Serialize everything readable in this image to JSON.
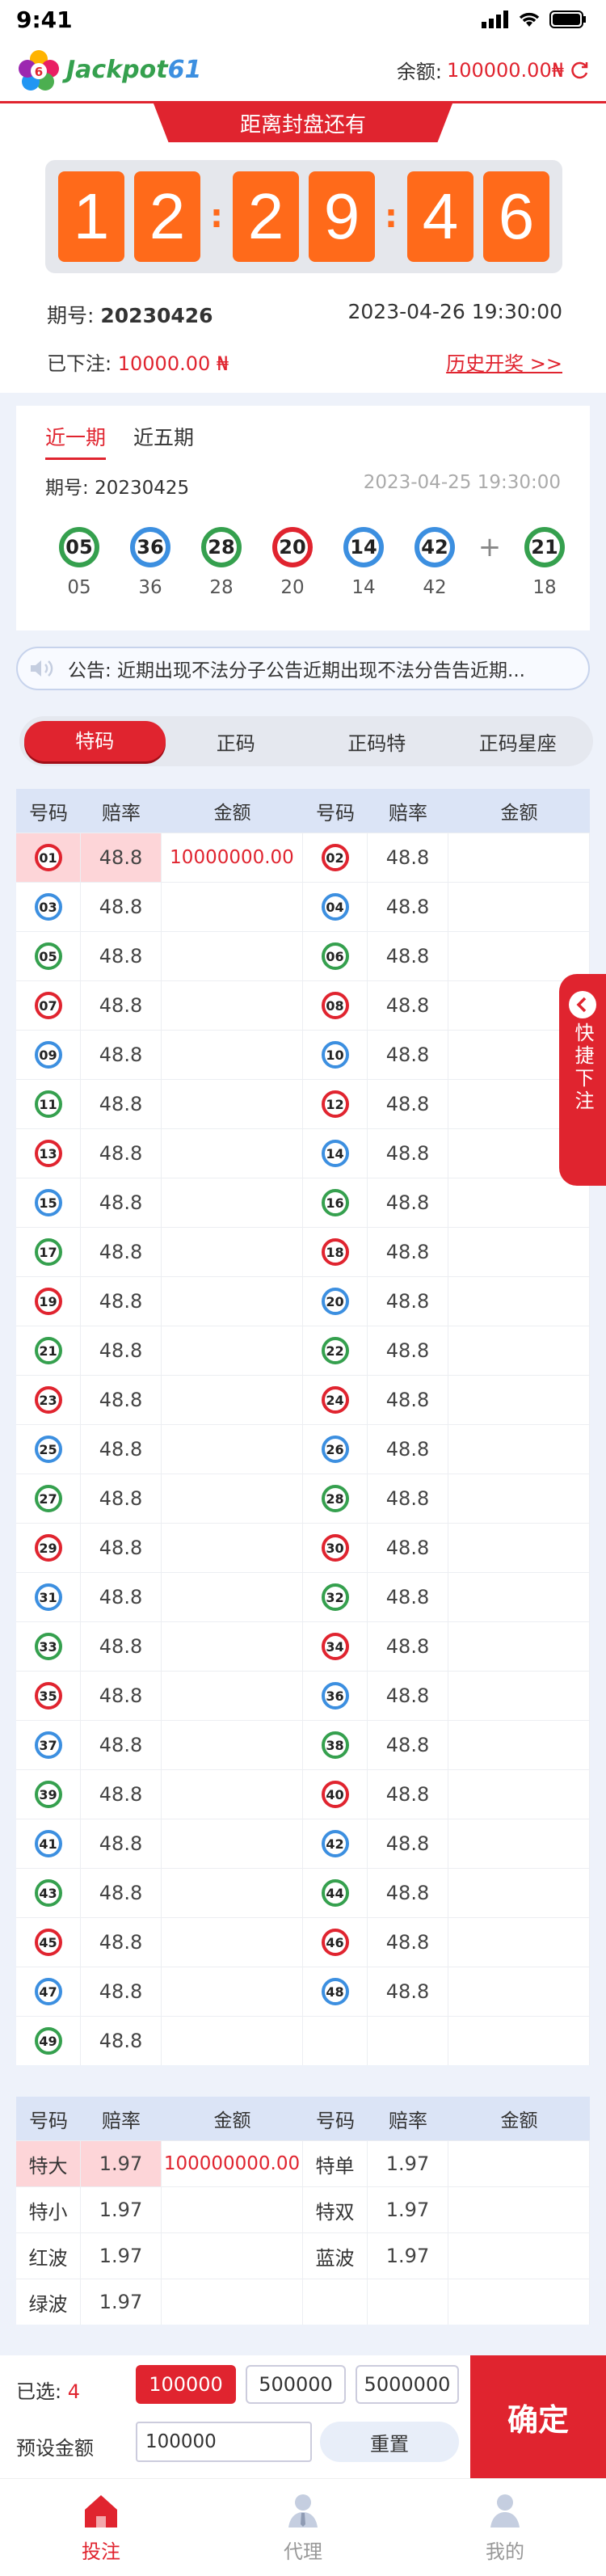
{
  "status_bar": {
    "time": "9:41"
  },
  "header": {
    "logo_text": "Jackpot61",
    "balance_label": "余额:",
    "balance_value": "100000.00₦"
  },
  "countdown": {
    "title": "距离封盘还有",
    "hours": [
      "1",
      "2"
    ],
    "minutes": [
      "2",
      "9"
    ],
    "seconds": [
      "4",
      "6"
    ]
  },
  "current": {
    "period_label": "期号:",
    "period": "20230426",
    "datetime": "2023-04-26 19:30:00",
    "bet_label": "已下注:",
    "bet_amount": "10000.00 ₦",
    "history_link": "历史开奖 >>"
  },
  "history": {
    "tabs": [
      "近一期",
      "近五期"
    ],
    "period_label": "期号:",
    "period": "20230425",
    "datetime": "2023-04-25 19:30:00",
    "balls": [
      {
        "num": "05",
        "color": "#35a04e"
      },
      {
        "num": "36",
        "color": "#3c8fe0"
      },
      {
        "num": "28",
        "color": "#35a04e"
      },
      {
        "num": "20",
        "color": "#e0242f"
      },
      {
        "num": "14",
        "color": "#3c8fe0"
      },
      {
        "num": "42",
        "color": "#3c8fe0"
      }
    ],
    "special": {
      "num": "21",
      "label": "18",
      "color": "#35a04e"
    }
  },
  "notice": {
    "text": "公告: 近期出现不法分子公告近期出现不法分告告近期..."
  },
  "play_tabs": [
    "特码",
    "正码",
    "正码特",
    "正码星座"
  ],
  "grid": {
    "headers": [
      "号码",
      "赔率",
      "金额",
      "号码",
      "赔率",
      "金额"
    ],
    "colors": {
      "red": "#e0242f",
      "blue": "#3c8fe0",
      "green": "#35a04e"
    },
    "numbers": [
      {
        "n": "01",
        "c": "red",
        "o": "48.8",
        "a": "10000000.00",
        "sel": true
      },
      {
        "n": "02",
        "c": "red",
        "o": "48.8",
        "a": ""
      },
      {
        "n": "03",
        "c": "blue",
        "o": "48.8",
        "a": ""
      },
      {
        "n": "04",
        "c": "blue",
        "o": "48.8",
        "a": ""
      },
      {
        "n": "05",
        "c": "green",
        "o": "48.8",
        "a": ""
      },
      {
        "n": "06",
        "c": "green",
        "o": "48.8",
        "a": ""
      },
      {
        "n": "07",
        "c": "red",
        "o": "48.8",
        "a": ""
      },
      {
        "n": "08",
        "c": "red",
        "o": "48.8",
        "a": ""
      },
      {
        "n": "09",
        "c": "blue",
        "o": "48.8",
        "a": ""
      },
      {
        "n": "10",
        "c": "blue",
        "o": "48.8",
        "a": ""
      },
      {
        "n": "11",
        "c": "green",
        "o": "48.8",
        "a": ""
      },
      {
        "n": "12",
        "c": "red",
        "o": "48.8",
        "a": ""
      },
      {
        "n": "13",
        "c": "red",
        "o": "48.8",
        "a": ""
      },
      {
        "n": "14",
        "c": "blue",
        "o": "48.8",
        "a": ""
      },
      {
        "n": "15",
        "c": "blue",
        "o": "48.8",
        "a": ""
      },
      {
        "n": "16",
        "c": "green",
        "o": "48.8",
        "a": ""
      },
      {
        "n": "17",
        "c": "green",
        "o": "48.8",
        "a": ""
      },
      {
        "n": "18",
        "c": "red",
        "o": "48.8",
        "a": ""
      },
      {
        "n": "19",
        "c": "red",
        "o": "48.8",
        "a": ""
      },
      {
        "n": "20",
        "c": "blue",
        "o": "48.8",
        "a": ""
      },
      {
        "n": "21",
        "c": "green",
        "o": "48.8",
        "a": ""
      },
      {
        "n": "22",
        "c": "green",
        "o": "48.8",
        "a": ""
      },
      {
        "n": "23",
        "c": "red",
        "o": "48.8",
        "a": ""
      },
      {
        "n": "24",
        "c": "red",
        "o": "48.8",
        "a": ""
      },
      {
        "n": "25",
        "c": "blue",
        "o": "48.8",
        "a": ""
      },
      {
        "n": "26",
        "c": "blue",
        "o": "48.8",
        "a": ""
      },
      {
        "n": "27",
        "c": "green",
        "o": "48.8",
        "a": ""
      },
      {
        "n": "28",
        "c": "green",
        "o": "48.8",
        "a": ""
      },
      {
        "n": "29",
        "c": "red",
        "o": "48.8",
        "a": ""
      },
      {
        "n": "30",
        "c": "red",
        "o": "48.8",
        "a": ""
      },
      {
        "n": "31",
        "c": "blue",
        "o": "48.8",
        "a": ""
      },
      {
        "n": "32",
        "c": "green",
        "o": "48.8",
        "a": ""
      },
      {
        "n": "33",
        "c": "green",
        "o": "48.8",
        "a": ""
      },
      {
        "n": "34",
        "c": "red",
        "o": "48.8",
        "a": ""
      },
      {
        "n": "35",
        "c": "red",
        "o": "48.8",
        "a": ""
      },
      {
        "n": "36",
        "c": "blue",
        "o": "48.8",
        "a": ""
      },
      {
        "n": "37",
        "c": "blue",
        "o": "48.8",
        "a": ""
      },
      {
        "n": "38",
        "c": "green",
        "o": "48.8",
        "a": ""
      },
      {
        "n": "39",
        "c": "green",
        "o": "48.8",
        "a": ""
      },
      {
        "n": "40",
        "c": "red",
        "o": "48.8",
        "a": ""
      },
      {
        "n": "41",
        "c": "blue",
        "o": "48.8",
        "a": ""
      },
      {
        "n": "42",
        "c": "blue",
        "o": "48.8",
        "a": ""
      },
      {
        "n": "43",
        "c": "green",
        "o": "48.8",
        "a": ""
      },
      {
        "n": "44",
        "c": "green",
        "o": "48.8",
        "a": ""
      },
      {
        "n": "45",
        "c": "red",
        "o": "48.8",
        "a": ""
      },
      {
        "n": "46",
        "c": "red",
        "o": "48.8",
        "a": ""
      },
      {
        "n": "47",
        "c": "blue",
        "o": "48.8",
        "a": ""
      },
      {
        "n": "48",
        "c": "blue",
        "o": "48.8",
        "a": ""
      },
      {
        "n": "49",
        "c": "green",
        "o": "48.8",
        "a": ""
      }
    ]
  },
  "grid2": {
    "headers": [
      "号码",
      "赔率",
      "金额",
      "号码",
      "赔率",
      "金额"
    ],
    "items": [
      {
        "n": "特大",
        "o": "1.97",
        "a": "100000000.00",
        "sel": true
      },
      {
        "n": "特单",
        "o": "1.97",
        "a": ""
      },
      {
        "n": "特小",
        "o": "1.97",
        "a": ""
      },
      {
        "n": "特双",
        "o": "1.97",
        "a": ""
      },
      {
        "n": "红波",
        "o": "1.97",
        "a": ""
      },
      {
        "n": "蓝波",
        "o": "1.97",
        "a": ""
      },
      {
        "n": "绿波",
        "o": "1.97",
        "a": ""
      }
    ]
  },
  "bet_panel": {
    "selected_label": "已选:",
    "selected_count": "4",
    "chips": [
      "100000",
      "500000",
      "5000000"
    ],
    "preset_label": "预设金额",
    "preset_value": "100000",
    "reset_label": "重置",
    "confirm_label": "确定"
  },
  "quick_bet": {
    "label": "快捷下注"
  },
  "nav": [
    {
      "label": "投注",
      "icon": "home-icon"
    },
    {
      "label": "代理",
      "icon": "agent-icon"
    },
    {
      "label": "我的",
      "icon": "profile-icon"
    }
  ]
}
